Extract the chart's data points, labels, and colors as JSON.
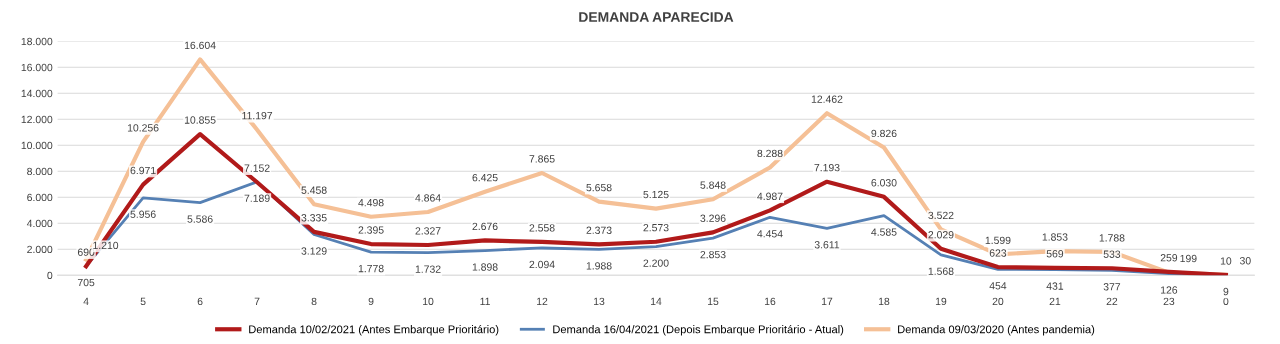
{
  "chart_data": {
    "type": "line",
    "title": "DEMANDA APARECIDA",
    "categories": [
      "4",
      "5",
      "6",
      "7",
      "8",
      "9",
      "10",
      "11",
      "12",
      "13",
      "14",
      "15",
      "16",
      "17",
      "18",
      "19",
      "20",
      "21",
      "22",
      "23",
      "0"
    ],
    "series": [
      {
        "name": "Demanda 10/02/2021 (Antes Embarque Prioritário)",
        "color": "#b11a1a",
        "values": [
          690,
          6971,
          10855,
          7152,
          3335,
          2395,
          2327,
          2676,
          2558,
          2373,
          2573,
          3296,
          4987,
          7193,
          6030,
          2029,
          623,
          569,
          533,
          259,
          10
        ],
        "value_labels": [
          "690",
          "6.971",
          "10.855",
          "7.152",
          "3.335",
          "2.395",
          "2.327",
          "2.676",
          "2.558",
          "2.373",
          "2.573",
          "3.296",
          "4.987",
          "7.193",
          "6.030",
          "2.029",
          "623",
          "569",
          "533",
          "259",
          "10"
        ]
      },
      {
        "name": "Demanda 16/04/2021 (Depois Embarque Prioritário - Atual)",
        "color": "#5580b4",
        "values": [
          705,
          5956,
          5586,
          7189,
          3129,
          1778,
          1732,
          1898,
          2094,
          1988,
          2200,
          2853,
          4454,
          3611,
          4585,
          1568,
          454,
          431,
          377,
          126,
          9
        ],
        "value_labels": [
          "705",
          "5.956",
          "5.586",
          "7.189",
          "3.129",
          "1.778",
          "1.732",
          "1.898",
          "2.094",
          "1.988",
          "2.200",
          "2.853",
          "4.454",
          "3.611",
          "4.585",
          "1.568",
          "454",
          "431",
          "377",
          "126",
          "9"
        ]
      },
      {
        "name": "Demanda 09/03/2020 (Antes pandemia)",
        "color": "#f5c096",
        "values": [
          1210,
          10256,
          16604,
          11197,
          5458,
          4498,
          4864,
          6425,
          7865,
          5658,
          5125,
          5848,
          8288,
          12462,
          9826,
          3522,
          1599,
          1853,
          1788,
          199,
          30
        ],
        "value_labels": [
          "1.210",
          "10.256",
          "16.604",
          "11.197",
          "5.458",
          "4.498",
          "4.864",
          "6.425",
          "7.865",
          "5.658",
          "5.125",
          "5.848",
          "8.288",
          "12.462",
          "9.826",
          "3.522",
          "1.599",
          "1.853",
          "1.788",
          "199",
          "30"
        ]
      }
    ],
    "ylim": [
      0,
      18000
    ],
    "yticks": [
      {
        "value": 0,
        "label": "0"
      },
      {
        "value": 2000,
        "label": "2.000"
      },
      {
        "value": 4000,
        "label": "4.000"
      },
      {
        "value": 6000,
        "label": "6.000"
      },
      {
        "value": 8000,
        "label": "8.000"
      },
      {
        "value": 10000,
        "label": "10.000"
      },
      {
        "value": 12000,
        "label": "12.000"
      },
      {
        "value": 14000,
        "label": "14.000"
      },
      {
        "value": 16000,
        "label": "16.000"
      },
      {
        "value": 18000,
        "label": "18.000"
      }
    ],
    "grid": "y",
    "legend": "bottom",
    "marker": "none",
    "line_style": "solid"
  }
}
